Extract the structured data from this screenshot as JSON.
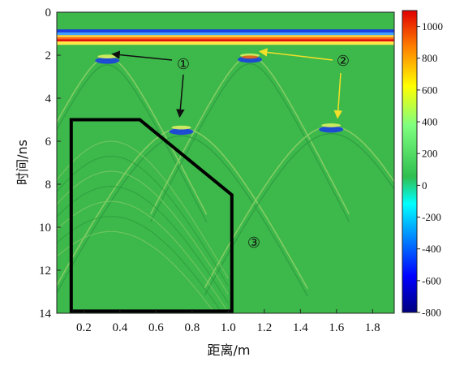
{
  "chart_data": {
    "type": "heatmap",
    "title": "",
    "xlabel": "距离/m",
    "ylabel": "时间/ns",
    "xlim": [
      0.05,
      1.92
    ],
    "ylim": [
      0,
      14
    ],
    "y_inverted": true,
    "x_ticks": [
      "0.2",
      "0.4",
      "0.6",
      "0.8",
      "1.0",
      "1.2",
      "1.4",
      "1.6",
      "1.8"
    ],
    "y_ticks": [
      "0",
      "2",
      "4",
      "6",
      "8",
      "10",
      "12",
      "14"
    ],
    "colorbar": {
      "min": -800,
      "max": 1100,
      "ticks": [
        "1000",
        "800",
        "600",
        "400",
        "200",
        "0",
        "-200",
        "-400",
        "-600",
        "-800"
      ],
      "colormap": "jet"
    },
    "background_value": 0,
    "features": {
      "direct_wave_band_time_ns": [
        0.8,
        1.5
      ],
      "hyperbola_apexes": [
        {
          "x": 0.33,
          "t": 2.1
        },
        {
          "x": 1.12,
          "t": 2.05
        },
        {
          "x": 0.74,
          "t": 5.4
        },
        {
          "x": 1.57,
          "t": 5.3
        }
      ]
    },
    "annotations": [
      {
        "label": "①",
        "color": "#111111"
      },
      {
        "label": "②",
        "color": "#f2e02a"
      },
      {
        "label": "③",
        "color": "#111111"
      }
    ],
    "region_polygon_data": [
      [
        0.13,
        5.0
      ],
      [
        0.51,
        5.0
      ],
      [
        1.02,
        8.5
      ],
      [
        1.02,
        13.9
      ],
      [
        0.13,
        13.9
      ]
    ]
  }
}
